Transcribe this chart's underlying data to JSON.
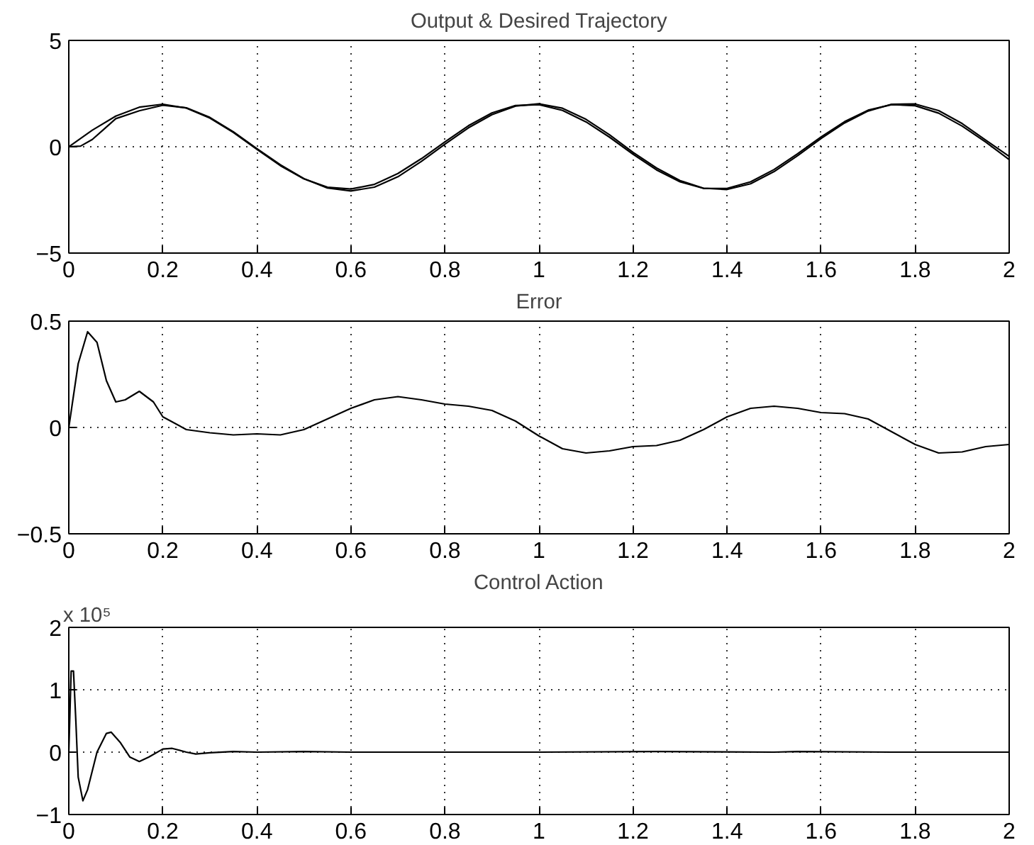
{
  "chart_data": [
    {
      "type": "line",
      "title": "Output & Desired Trajectory",
      "xlim": [
        0,
        2
      ],
      "xticks": [
        0,
        0.2,
        0.4,
        0.6,
        0.8,
        1,
        1.2,
        1.4,
        1.6,
        1.8,
        2
      ],
      "ylim": [
        -5,
        5
      ],
      "yticks": [
        -5,
        0,
        5
      ],
      "grid": true,
      "series": [
        {
          "color": "#000000",
          "x": [
            0,
            0.05,
            0.1,
            0.15,
            0.2,
            0.25,
            0.3,
            0.35,
            0.4,
            0.45,
            0.5,
            0.55,
            0.6,
            0.65,
            0.7,
            0.75,
            0.8,
            0.85,
            0.9,
            0.95,
            1.0,
            1.05,
            1.1,
            1.15,
            1.2,
            1.25,
            1.3,
            1.35,
            1.4,
            1.45,
            1.5,
            1.55,
            1.6,
            1.65,
            1.7,
            1.75,
            1.8,
            1.85,
            1.9,
            1.95,
            2.0
          ],
          "values": [
            0,
            0.78,
            1.44,
            1.86,
            2.0,
            1.82,
            1.35,
            0.67,
            -0.12,
            -0.89,
            -1.51,
            -1.9,
            -1.99,
            -1.77,
            -1.26,
            -0.56,
            0.23,
            0.99,
            1.59,
            1.94,
            1.98,
            1.71,
            1.17,
            0.45,
            -0.35,
            -1.09,
            -1.65,
            -1.96,
            -1.96,
            -1.65,
            -1.07,
            -0.33,
            0.46,
            1.18,
            1.72,
            1.98,
            1.93,
            1.58,
            0.97,
            0.22,
            -0.6
          ]
        },
        {
          "color": "#000000",
          "x": [
            0,
            0.025,
            0.05,
            0.075,
            0.1,
            0.15,
            0.2,
            0.25,
            0.3,
            0.35,
            0.4,
            0.45,
            0.5,
            0.55,
            0.6,
            0.65,
            0.7,
            0.75,
            0.8,
            0.85,
            0.9,
            0.95,
            1.0,
            1.05,
            1.1,
            1.15,
            1.2,
            1.25,
            1.3,
            1.35,
            1.4,
            1.45,
            1.5,
            1.55,
            1.6,
            1.65,
            1.7,
            1.75,
            1.8,
            1.85,
            1.9,
            1.95,
            2.0
          ],
          "values": [
            0,
            0.03,
            0.34,
            0.83,
            1.32,
            1.69,
            1.95,
            1.83,
            1.38,
            0.7,
            -0.09,
            -0.85,
            -1.5,
            -1.94,
            -2.08,
            -1.9,
            -1.41,
            -0.69,
            0.12,
            0.89,
            1.51,
            1.91,
            2.02,
            1.81,
            1.29,
            0.56,
            -0.26,
            -1.0,
            -1.59,
            -1.95,
            -2.01,
            -1.74,
            -1.17,
            -0.42,
            0.39,
            1.12,
            1.68,
            2.0,
            2.01,
            1.7,
            1.09,
            0.31,
            -0.45
          ]
        }
      ]
    },
    {
      "type": "line",
      "title": "Error",
      "xlim": [
        0,
        2
      ],
      "xticks": [
        0,
        0.2,
        0.4,
        0.6,
        0.8,
        1,
        1.2,
        1.4,
        1.6,
        1.8,
        2
      ],
      "ylim": [
        -0.5,
        0.5
      ],
      "yticks": [
        -0.5,
        0,
        0.5
      ],
      "grid": true,
      "series": [
        {
          "color": "#000000",
          "x": [
            0,
            0.02,
            0.04,
            0.06,
            0.08,
            0.1,
            0.12,
            0.15,
            0.18,
            0.2,
            0.25,
            0.3,
            0.35,
            0.4,
            0.45,
            0.5,
            0.55,
            0.6,
            0.65,
            0.7,
            0.75,
            0.8,
            0.85,
            0.9,
            0.95,
            1.0,
            1.05,
            1.1,
            1.15,
            1.2,
            1.25,
            1.3,
            1.35,
            1.4,
            1.45,
            1.5,
            1.55,
            1.6,
            1.65,
            1.7,
            1.75,
            1.8,
            1.85,
            1.9,
            1.95,
            2.0
          ],
          "values": [
            0,
            0.3,
            0.45,
            0.4,
            0.22,
            0.12,
            0.13,
            0.17,
            0.12,
            0.05,
            -0.01,
            -0.025,
            -0.035,
            -0.03,
            -0.035,
            -0.01,
            0.04,
            0.09,
            0.13,
            0.145,
            0.13,
            0.11,
            0.1,
            0.08,
            0.03,
            -0.04,
            -0.1,
            -0.12,
            -0.11,
            -0.09,
            -0.085,
            -0.06,
            -0.01,
            0.05,
            0.09,
            0.1,
            0.09,
            0.07,
            0.065,
            0.04,
            -0.02,
            -0.08,
            -0.12,
            -0.115,
            -0.09,
            -0.08
          ]
        }
      ]
    },
    {
      "type": "line",
      "title": "Control Action",
      "annotations": [
        "x 10⁵"
      ],
      "xlim": [
        0,
        2
      ],
      "xticks": [
        0,
        0.2,
        0.4,
        0.6,
        0.8,
        1,
        1.2,
        1.4,
        1.6,
        1.8,
        2
      ],
      "ylim": [
        -1,
        2
      ],
      "yticks": [
        -1,
        0,
        1,
        2
      ],
      "grid": true,
      "series": [
        {
          "color": "#000000",
          "x": [
            0,
            0.005,
            0.01,
            0.015,
            0.02,
            0.03,
            0.04,
            0.06,
            0.08,
            0.09,
            0.11,
            0.13,
            0.15,
            0.17,
            0.2,
            0.22,
            0.25,
            0.27,
            0.3,
            0.35,
            0.4,
            0.5,
            0.6,
            0.8,
            1.0,
            1.25,
            1.5,
            1.55,
            1.75,
            2.0
          ],
          "values": [
            0,
            1.3,
            1.3,
            0.5,
            -0.4,
            -0.78,
            -0.6,
            0.0,
            0.3,
            0.32,
            0.15,
            -0.08,
            -0.15,
            -0.08,
            0.05,
            0.06,
            0.0,
            -0.03,
            -0.01,
            0.01,
            0.0,
            0.01,
            0.0,
            0.0,
            0.0,
            0.01,
            0.0,
            0.01,
            0.0,
            0.0
          ]
        }
      ]
    }
  ]
}
